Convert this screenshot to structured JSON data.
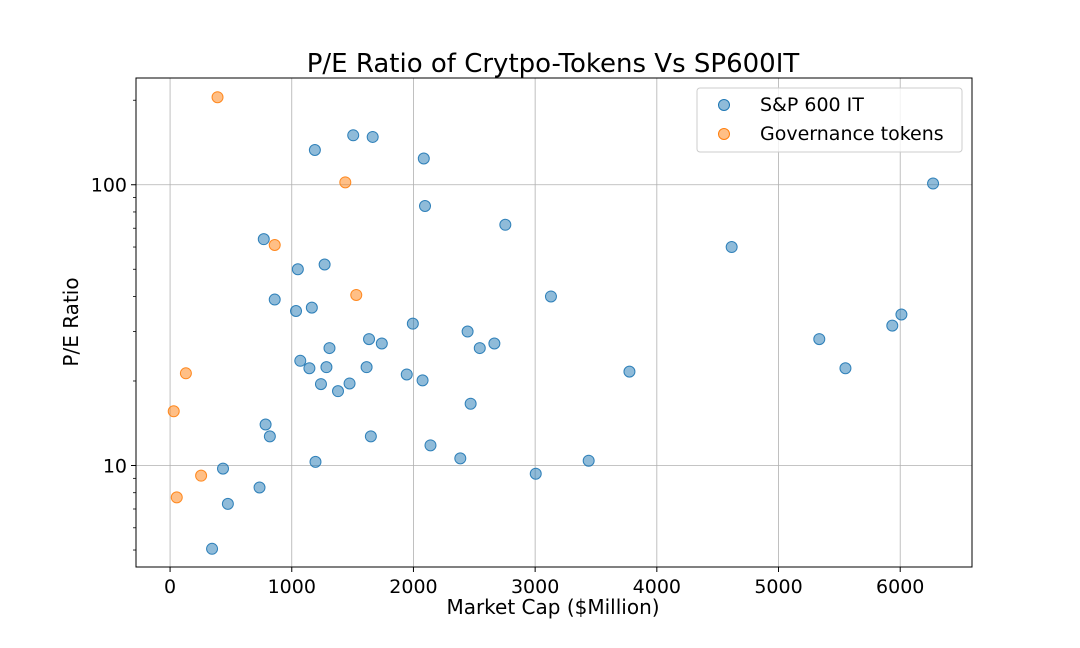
{
  "chart_data": {
    "type": "scatter",
    "title": "P/E Ratio of Crytpo-Tokens Vs SP600IT",
    "xlabel": "Market Cap ($Million)",
    "ylabel": "P/E Ratio",
    "xlim": [
      -280,
      6590
    ],
    "ylim": [
      4.35,
      240
    ],
    "yscale": "log",
    "xticks": [
      0,
      1000,
      2000,
      3000,
      4000,
      5000,
      6000
    ],
    "xtick_labels": [
      "0",
      "1000",
      "2000",
      "3000",
      "4000",
      "5000",
      "6000"
    ],
    "yticks_major": [
      10,
      100
    ],
    "ytick_labels": [
      "10",
      "100"
    ],
    "yticks_minor": [
      5,
      6,
      7,
      8,
      9,
      20,
      30,
      40,
      50,
      60,
      70,
      80,
      90,
      200
    ],
    "grid": true,
    "legend_position": "top-right",
    "series": [
      {
        "name": "S&P 600 IT",
        "color": "#1f77b4",
        "points": [
          [
            1505,
            150
          ],
          [
            1665,
            148
          ],
          [
            1190,
            133
          ],
          [
            2085,
            124
          ],
          [
            6270,
            101
          ],
          [
            2095,
            84
          ],
          [
            2755,
            72
          ],
          [
            770,
            64
          ],
          [
            4615,
            60
          ],
          [
            1270,
            52
          ],
          [
            1050,
            50
          ],
          [
            3130,
            40
          ],
          [
            860,
            39
          ],
          [
            1165,
            36.5
          ],
          [
            1035,
            35.5
          ],
          [
            6010,
            34.5
          ],
          [
            1995,
            32
          ],
          [
            5935,
            31.5
          ],
          [
            2445,
            30
          ],
          [
            1635,
            28.2
          ],
          [
            5335,
            28.2
          ],
          [
            1740,
            27.2
          ],
          [
            2665,
            27.2
          ],
          [
            1310,
            26.2
          ],
          [
            2545,
            26.2
          ],
          [
            1070,
            23.6
          ],
          [
            1145,
            22.2
          ],
          [
            1285,
            22.4
          ],
          [
            1615,
            22.4
          ],
          [
            5550,
            22.2
          ],
          [
            3775,
            21.6
          ],
          [
            1945,
            21.1
          ],
          [
            1240,
            19.5
          ],
          [
            1475,
            19.6
          ],
          [
            2075,
            20.1
          ],
          [
            1380,
            18.4
          ],
          [
            2470,
            16.6
          ],
          [
            785,
            14.0
          ],
          [
            820,
            12.7
          ],
          [
            1650,
            12.7
          ],
          [
            2140,
            11.8
          ],
          [
            2385,
            10.6
          ],
          [
            1195,
            10.3
          ],
          [
            3440,
            10.4
          ],
          [
            3005,
            9.35
          ],
          [
            435,
            9.75
          ],
          [
            735,
            8.35
          ],
          [
            475,
            7.3
          ],
          [
            345,
            5.05
          ]
        ]
      },
      {
        "name": "Governance tokens",
        "color": "#ff7f0e",
        "points": [
          [
            390,
            205
          ],
          [
            1440,
            102
          ],
          [
            860,
            61
          ],
          [
            1530,
            40.5
          ],
          [
            130,
            21.3
          ],
          [
            30,
            15.6
          ],
          [
            255,
            9.2
          ],
          [
            55,
            7.7
          ]
        ]
      }
    ]
  }
}
